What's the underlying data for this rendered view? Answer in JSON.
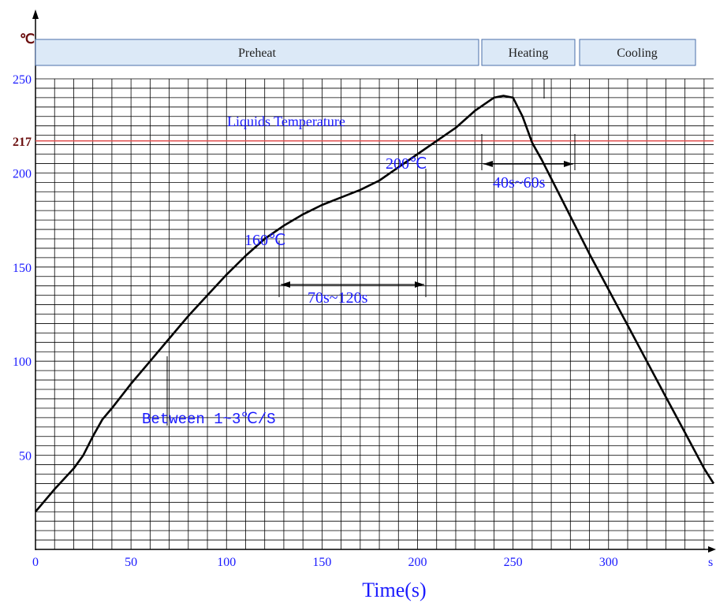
{
  "chart_data": {
    "type": "line",
    "xlabel": "Time(s)",
    "x_unit_label": "s",
    "y_unit_label": "℃",
    "x_ticks": [
      0,
      50,
      100,
      150,
      200,
      250,
      300
    ],
    "y_ticks": [
      50,
      100,
      150,
      200,
      217,
      250
    ],
    "xlim": [
      0,
      355
    ],
    "ylim": [
      0,
      250
    ],
    "grid": true,
    "series": [
      {
        "x": [
          0,
          10,
          20,
          25,
          30,
          35,
          40,
          50,
          60,
          70,
          80,
          90,
          100,
          110,
          120,
          130,
          140,
          150,
          160,
          170,
          180,
          190,
          200,
          210,
          220,
          230,
          240,
          245,
          250,
          255,
          260,
          265,
          270,
          275,
          280,
          290,
          300,
          310,
          320,
          330,
          340,
          350,
          355
        ],
        "y": [
          20,
          32,
          43,
          50,
          60,
          69,
          75,
          88,
          100,
          112,
          124,
          135,
          146,
          156,
          165,
          172,
          178,
          183,
          187,
          191,
          196,
          203,
          210,
          217,
          224,
          233,
          240,
          241,
          240,
          230,
          216,
          207,
          197,
          187,
          177,
          157,
          138,
          119,
          100,
          81,
          62,
          43,
          35
        ]
      }
    ],
    "phases": [
      "Preheat",
      "Heating",
      "Cooling"
    ],
    "reference_line": {
      "value": 217,
      "label": "Liquids Temperature"
    },
    "annotations": {
      "point_160": "160℃",
      "point_200": "200℃",
      "preheat_window": "70s~120s",
      "liquidus_window": "40s~60s",
      "ramp_rate": "Between 1~3℃/S"
    }
  }
}
